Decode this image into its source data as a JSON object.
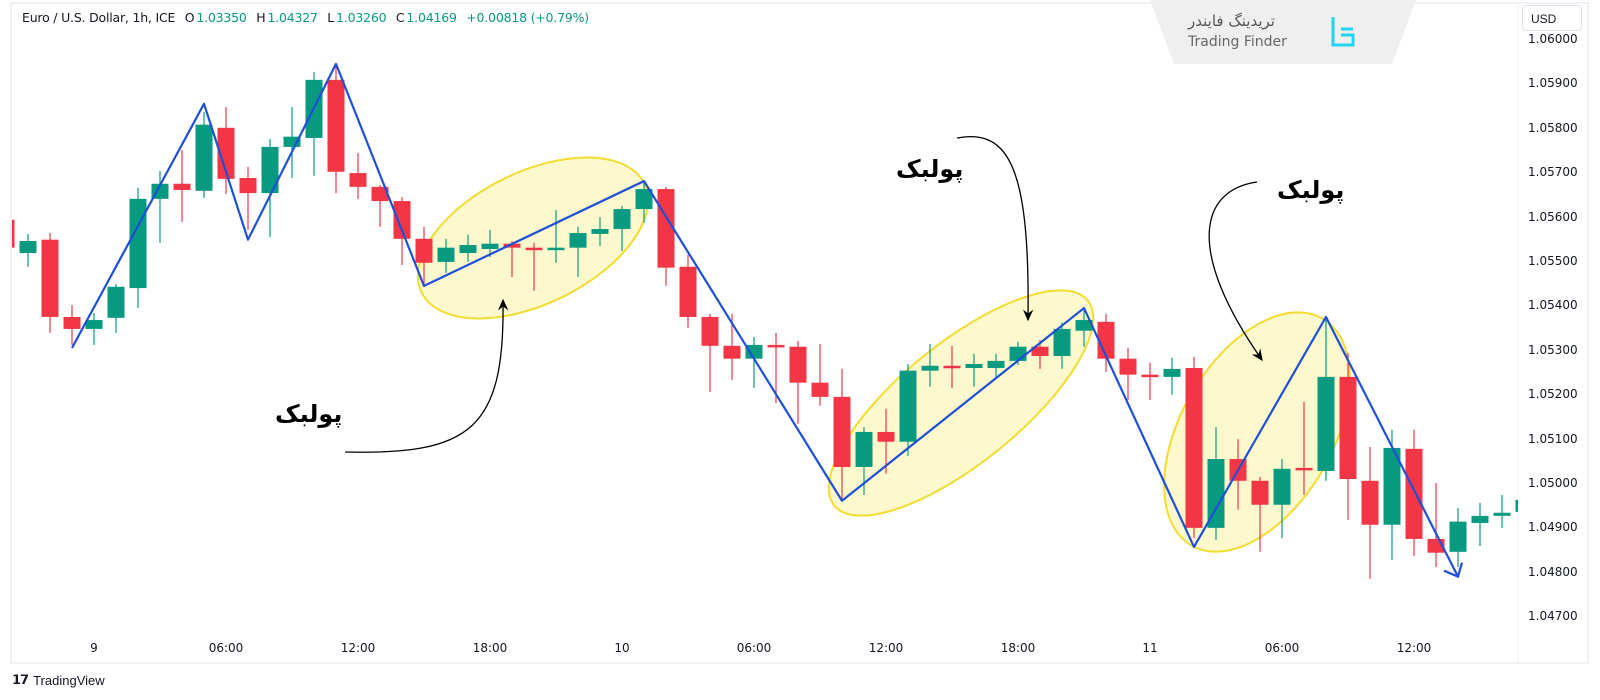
{
  "header": {
    "symbol": "Euro / U.S. Dollar, 1h, ICE",
    "open_label": "O",
    "open": "1.03350",
    "high_label": "H",
    "high": "1.04327",
    "low_label": "L",
    "low": "1.03260",
    "close_label": "C",
    "close": "1.04169",
    "change": "+0.00818 (+0.79%)"
  },
  "branding": {
    "name_fa": "تریدینگ فایندر",
    "name_en": "Trading Finder",
    "icon": "trading-finder-logo"
  },
  "currency_button": "USD",
  "footer": {
    "logo_text": "TV",
    "name": "TradingView"
  },
  "colors": {
    "up": "#089981",
    "down": "#f23645",
    "zigzag": "#1e4fd8",
    "highlight_fill": "#fdf9cc",
    "highlight_stroke": "#f2dc30"
  },
  "annotations": [
    {
      "text": "پولبک"
    },
    {
      "text": "پولبک"
    },
    {
      "text": "پولبک"
    }
  ],
  "chart_data": {
    "type": "candlestick",
    "timeframe": "1h",
    "ylim": [
      1.0465,
      1.0604
    ],
    "grid": false,
    "y_ticks": [
      "1.06000",
      "1.05900",
      "1.05800",
      "1.05700",
      "1.05600",
      "1.05500",
      "1.05400",
      "1.05300",
      "1.05200",
      "1.05100",
      "1.05000",
      "1.04900",
      "1.04800",
      "1.04700"
    ],
    "x_ticks": [
      {
        "label": "9",
        "candle": 4
      },
      {
        "label": "06:00",
        "candle": 10
      },
      {
        "label": "12:00",
        "candle": 16
      },
      {
        "label": "18:00",
        "candle": 22
      },
      {
        "label": "10",
        "candle": 28
      },
      {
        "label": "06:00",
        "candle": 34
      },
      {
        "label": "12:00",
        "candle": 40
      },
      {
        "label": "18:00",
        "candle": 46
      },
      {
        "label": "11",
        "candle": 52
      },
      {
        "label": "06:00",
        "candle": 58
      },
      {
        "label": "12:00",
        "candle": 64
      }
    ],
    "ohlc_columns": [
      "open",
      "high",
      "low",
      "close"
    ],
    "candles": [
      [
        1.05593,
        1.05593,
        1.05518,
        1.0553
      ],
      [
        1.05518,
        1.05561,
        1.05487,
        1.05545
      ],
      [
        1.05548,
        1.05563,
        1.05338,
        1.05374
      ],
      [
        1.05374,
        1.05401,
        1.05311,
        1.05347
      ],
      [
        1.05347,
        1.05383,
        1.05311,
        1.05367
      ],
      [
        1.05372,
        1.05448,
        1.05338,
        1.05442
      ],
      [
        1.05439,
        1.05665,
        1.05394,
        1.0564
      ],
      [
        1.0564,
        1.05703,
        1.05541,
        1.05674
      ],
      [
        1.05674,
        1.0575,
        1.05588,
        1.0566
      ],
      [
        1.05658,
        1.05836,
        1.05642,
        1.05807
      ],
      [
        1.058,
        1.05847,
        1.05651,
        1.05685
      ],
      [
        1.05687,
        1.05712,
        1.0557,
        1.05653
      ],
      [
        1.05653,
        1.05775,
        1.05554,
        1.05757
      ],
      [
        1.05757,
        1.05847,
        1.05687,
        1.0578
      ],
      [
        1.05777,
        1.05926,
        1.05692,
        1.05908
      ],
      [
        1.05908,
        1.05944,
        1.05653,
        1.05701
      ],
      [
        1.05698,
        1.05743,
        1.0564,
        1.05667
      ],
      [
        1.05667,
        1.05671,
        1.05577,
        1.05635
      ],
      [
        1.05635,
        1.05644,
        1.05491,
        1.0555
      ],
      [
        1.0555,
        1.05577,
        1.05442,
        1.05496
      ],
      [
        1.05498,
        1.0555,
        1.05473,
        1.0553
      ],
      [
        1.05518,
        1.05559,
        1.05498,
        1.05536
      ],
      [
        1.05527,
        1.0557,
        1.05509,
        1.05539
      ],
      [
        1.05539,
        1.05545,
        1.05464,
        1.0553
      ],
      [
        1.0553,
        1.05541,
        1.05433,
        1.05525
      ],
      [
        1.05525,
        1.05615,
        1.05496,
        1.0553
      ],
      [
        1.0553,
        1.05577,
        1.05464,
        1.05563
      ],
      [
        1.05561,
        1.05599,
        1.05534,
        1.05572
      ],
      [
        1.05572,
        1.05624,
        1.05523,
        1.05617
      ],
      [
        1.05617,
        1.0568,
        1.05586,
        1.05662
      ],
      [
        1.05662,
        1.05667,
        1.05444,
        1.05485
      ],
      [
        1.05487,
        1.05514,
        1.05349,
        1.05374
      ],
      [
        1.05374,
        1.05381,
        1.05205,
        1.05309
      ],
      [
        1.05309,
        1.05381,
        1.05232,
        1.0528
      ],
      [
        1.0528,
        1.05329,
        1.05214,
        1.05311
      ],
      [
        1.05311,
        1.05338,
        1.0518,
        1.05307
      ],
      [
        1.05307,
        1.0532,
        1.05133,
        1.05226
      ],
      [
        1.05226,
        1.05313,
        1.05174,
        1.05194
      ],
      [
        1.05194,
        1.05257,
        1.0496,
        1.05036
      ],
      [
        1.05036,
        1.05126,
        1.04973,
        1.05115
      ],
      [
        1.05115,
        1.05167,
        1.05021,
        1.05093
      ],
      [
        1.05093,
        1.05268,
        1.05061,
        1.05253
      ],
      [
        1.05253,
        1.05313,
        1.05217,
        1.05264
      ],
      [
        1.05264,
        1.05309,
        1.05214,
        1.05259
      ],
      [
        1.05259,
        1.05291,
        1.05217,
        1.05268
      ],
      [
        1.05259,
        1.05291,
        1.05239,
        1.05275
      ],
      [
        1.05275,
        1.05318,
        1.05266,
        1.05307
      ],
      [
        1.05307,
        1.05322,
        1.05257,
        1.05286
      ],
      [
        1.05286,
        1.05361,
        1.05257,
        1.05347
      ],
      [
        1.05343,
        1.05394,
        1.05307,
        1.05367
      ],
      [
        1.05363,
        1.05381,
        1.0525,
        1.0528
      ],
      [
        1.0528,
        1.05304,
        1.05187,
        1.05244
      ],
      [
        1.05244,
        1.05271,
        1.05187,
        1.05239
      ],
      [
        1.05239,
        1.05282,
        1.05199,
        1.05257
      ],
      [
        1.05259,
        1.05284,
        1.04876,
        1.04899
      ],
      [
        1.04899,
        1.05126,
        1.04872,
        1.05054
      ],
      [
        1.05054,
        1.05099,
        1.0494,
        1.05005
      ],
      [
        1.05005,
        1.05014,
        1.04845,
        1.04951
      ],
      [
        1.04951,
        1.05054,
        1.04876,
        1.05032
      ],
      [
        1.05034,
        1.05183,
        1.04973,
        1.0503
      ],
      [
        1.05027,
        1.05374,
        1.05005,
        1.05239
      ],
      [
        1.05239,
        1.05293,
        1.04917,
        1.05009
      ],
      [
        1.05005,
        1.05081,
        1.04784,
        1.04906
      ],
      [
        1.04906,
        1.0512,
        1.04827,
        1.05079
      ],
      [
        1.05077,
        1.0512,
        1.04836,
        1.04874
      ],
      [
        1.04874,
        1.05,
        1.04811,
        1.04843
      ],
      [
        1.04845,
        1.04944,
        1.04811,
        1.04913
      ],
      [
        1.0491,
        1.04955,
        1.04858,
        1.04926
      ],
      [
        1.04926,
        1.04973,
        1.04899,
        1.04933
      ],
      [
        1.04935,
        1.04973,
        1.04928,
        1.04962
      ]
    ],
    "zigzag": [
      {
        "candle": 3,
        "price": 1.05304
      },
      {
        "candle": 9,
        "price": 1.05854
      },
      {
        "candle": 11,
        "price": 1.05548
      },
      {
        "candle": 15,
        "price": 1.05944
      },
      {
        "candle": 19,
        "price": 1.05444
      },
      {
        "candle": 29,
        "price": 1.0568
      },
      {
        "candle": 38,
        "price": 1.0496
      },
      {
        "candle": 49,
        "price": 1.05394
      },
      {
        "candle": 54,
        "price": 1.04856
      },
      {
        "candle": 60,
        "price": 1.05374
      },
      {
        "candle": 66,
        "price": 1.04789
      }
    ]
  }
}
